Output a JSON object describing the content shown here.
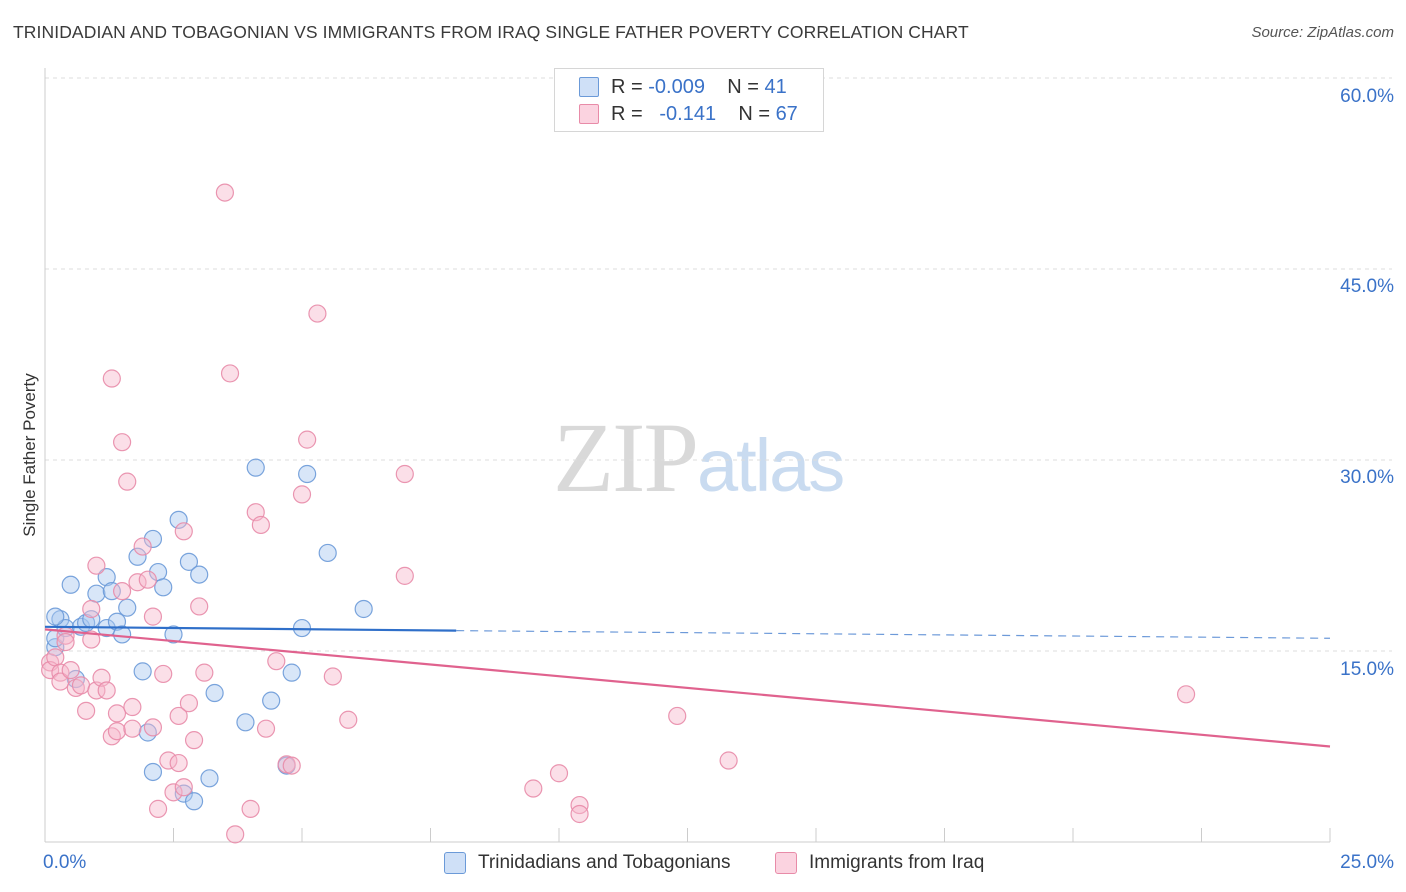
{
  "header": {
    "title": "TRINIDADIAN AND TOBAGONIAN VS IMMIGRANTS FROM IRAQ SINGLE FATHER POVERTY CORRELATION CHART",
    "source": "Source: ZipAtlas.com"
  },
  "watermark": {
    "zip": "ZIP",
    "atlas": "atlas"
  },
  "legend_top": {
    "rows": [
      {
        "r_label": "R =",
        "r_value": "-0.009",
        "n_label": "N =",
        "n_value": "41",
        "color": "#a9c8f0"
      },
      {
        "r_label": "R =",
        "r_value": "-0.141",
        "n_label": "N =",
        "n_value": "67",
        "color": "#f6b8cb"
      }
    ]
  },
  "colors": {
    "blue_fill": "#a9c8f0",
    "blue_stroke": "#6b9ad8",
    "blue_line": "#2f6fc9",
    "pink_fill": "#f6b8cb",
    "pink_stroke": "#e88ba8",
    "pink_line": "#e0628e",
    "grid": "#dddddd",
    "axis_text": "#3a72c8"
  },
  "chart_data": {
    "type": "scatter",
    "title": "TRINIDADIAN AND TOBAGONIAN VS IMMIGRANTS FROM IRAQ SINGLE FATHER POVERTY CORRELATION CHART",
    "xlabel": "",
    "ylabel": "Single Father Poverty",
    "xlim": [
      0,
      25
    ],
    "ylim": [
      0,
      60
    ],
    "x_tick_labels": [
      "0.0%",
      "25.0%"
    ],
    "y_tick_values": [
      15,
      30,
      45,
      60
    ],
    "y_tick_labels": [
      "15.0%",
      "30.0%",
      "45.0%",
      "60.0%"
    ],
    "legend_position": "bottom",
    "series": [
      {
        "name": "Trinidadians and Tobagonians",
        "color": "blue",
        "points": [
          [
            0.2,
            15.3
          ],
          [
            0.2,
            16.0
          ],
          [
            0.3,
            17.5
          ],
          [
            0.4,
            16.8
          ],
          [
            0.5,
            20.2
          ],
          [
            0.6,
            12.8
          ],
          [
            0.7,
            16.9
          ],
          [
            0.8,
            17.2
          ],
          [
            0.9,
            17.5
          ],
          [
            1.0,
            19.5
          ],
          [
            1.2,
            16.8
          ],
          [
            1.2,
            20.8
          ],
          [
            1.3,
            19.7
          ],
          [
            1.4,
            17.3
          ],
          [
            1.5,
            16.3
          ],
          [
            1.6,
            18.4
          ],
          [
            1.8,
            22.4
          ],
          [
            1.9,
            13.4
          ],
          [
            2.0,
            8.6
          ],
          [
            2.1,
            23.8
          ],
          [
            2.1,
            5.5
          ],
          [
            2.2,
            21.2
          ],
          [
            2.3,
            20.0
          ],
          [
            2.5,
            16.3
          ],
          [
            2.6,
            25.3
          ],
          [
            2.7,
            3.8
          ],
          [
            2.8,
            22.0
          ],
          [
            2.9,
            3.2
          ],
          [
            3.0,
            21.0
          ],
          [
            3.2,
            5.0
          ],
          [
            3.3,
            11.7
          ],
          [
            3.9,
            9.4
          ],
          [
            4.1,
            29.4
          ],
          [
            4.4,
            11.1
          ],
          [
            4.7,
            6.0
          ],
          [
            4.8,
            13.3
          ],
          [
            5.0,
            16.8
          ],
          [
            5.1,
            28.9
          ],
          [
            5.5,
            22.7
          ],
          [
            6.2,
            18.3
          ],
          [
            0.2,
            17.7
          ]
        ]
      },
      {
        "name": "Immigrants from Iraq",
        "color": "pink",
        "points": [
          [
            0.1,
            14.1
          ],
          [
            0.1,
            13.5
          ],
          [
            0.2,
            14.5
          ],
          [
            0.3,
            13.3
          ],
          [
            0.3,
            12.6
          ],
          [
            0.4,
            16.2
          ],
          [
            0.4,
            15.7
          ],
          [
            0.5,
            13.5
          ],
          [
            0.6,
            12.1
          ],
          [
            0.7,
            12.3
          ],
          [
            0.8,
            10.3
          ],
          [
            0.9,
            15.9
          ],
          [
            0.9,
            18.3
          ],
          [
            1.0,
            11.9
          ],
          [
            1.0,
            21.7
          ],
          [
            1.1,
            12.9
          ],
          [
            1.2,
            11.9
          ],
          [
            1.3,
            36.4
          ],
          [
            1.3,
            8.3
          ],
          [
            1.4,
            8.7
          ],
          [
            1.4,
            10.1
          ],
          [
            1.5,
            19.7
          ],
          [
            1.5,
            31.4
          ],
          [
            1.6,
            28.3
          ],
          [
            1.7,
            10.6
          ],
          [
            1.7,
            8.9
          ],
          [
            1.8,
            20.4
          ],
          [
            1.9,
            23.2
          ],
          [
            2.0,
            20.6
          ],
          [
            2.1,
            17.7
          ],
          [
            2.1,
            9.0
          ],
          [
            2.2,
            2.6
          ],
          [
            2.3,
            13.2
          ],
          [
            2.4,
            6.4
          ],
          [
            2.5,
            3.9
          ],
          [
            2.6,
            6.2
          ],
          [
            2.6,
            9.9
          ],
          [
            2.7,
            24.4
          ],
          [
            2.7,
            4.3
          ],
          [
            2.8,
            10.9
          ],
          [
            2.9,
            8.0
          ],
          [
            3.0,
            18.5
          ],
          [
            3.1,
            13.3
          ],
          [
            3.5,
            51.0
          ],
          [
            3.6,
            36.8
          ],
          [
            3.7,
            0.6
          ],
          [
            4.0,
            2.6
          ],
          [
            4.1,
            25.9
          ],
          [
            4.2,
            24.9
          ],
          [
            4.3,
            8.9
          ],
          [
            4.5,
            14.2
          ],
          [
            4.7,
            6.1
          ],
          [
            4.8,
            6.0
          ],
          [
            5.0,
            27.3
          ],
          [
            5.1,
            31.6
          ],
          [
            5.3,
            41.5
          ],
          [
            5.6,
            13.0
          ],
          [
            5.9,
            9.6
          ],
          [
            7.0,
            20.9
          ],
          [
            7.0,
            28.9
          ],
          [
            9.5,
            4.2
          ],
          [
            10.0,
            5.4
          ],
          [
            10.4,
            2.9
          ],
          [
            10.4,
            2.2
          ],
          [
            12.3,
            9.9
          ],
          [
            13.3,
            6.4
          ],
          [
            22.2,
            11.6
          ]
        ]
      }
    ],
    "trendlines": [
      {
        "series": "Trinidadians and Tobagonians",
        "x": [
          0,
          8.0
        ],
        "y": [
          16.9,
          16.6
        ],
        "extended_to": [
          25,
          16.0
        ],
        "style": "solid-then-dashed"
      },
      {
        "series": "Immigrants from Iraq",
        "x": [
          0,
          25
        ],
        "y": [
          16.7,
          7.5
        ],
        "style": "solid"
      }
    ]
  },
  "bottom_legend": {
    "items": [
      {
        "label": "Trinidadians and Tobagonians",
        "color": "#a9c8f0"
      },
      {
        "label": "Immigrants from Iraq",
        "color": "#f6b8cb"
      }
    ]
  }
}
